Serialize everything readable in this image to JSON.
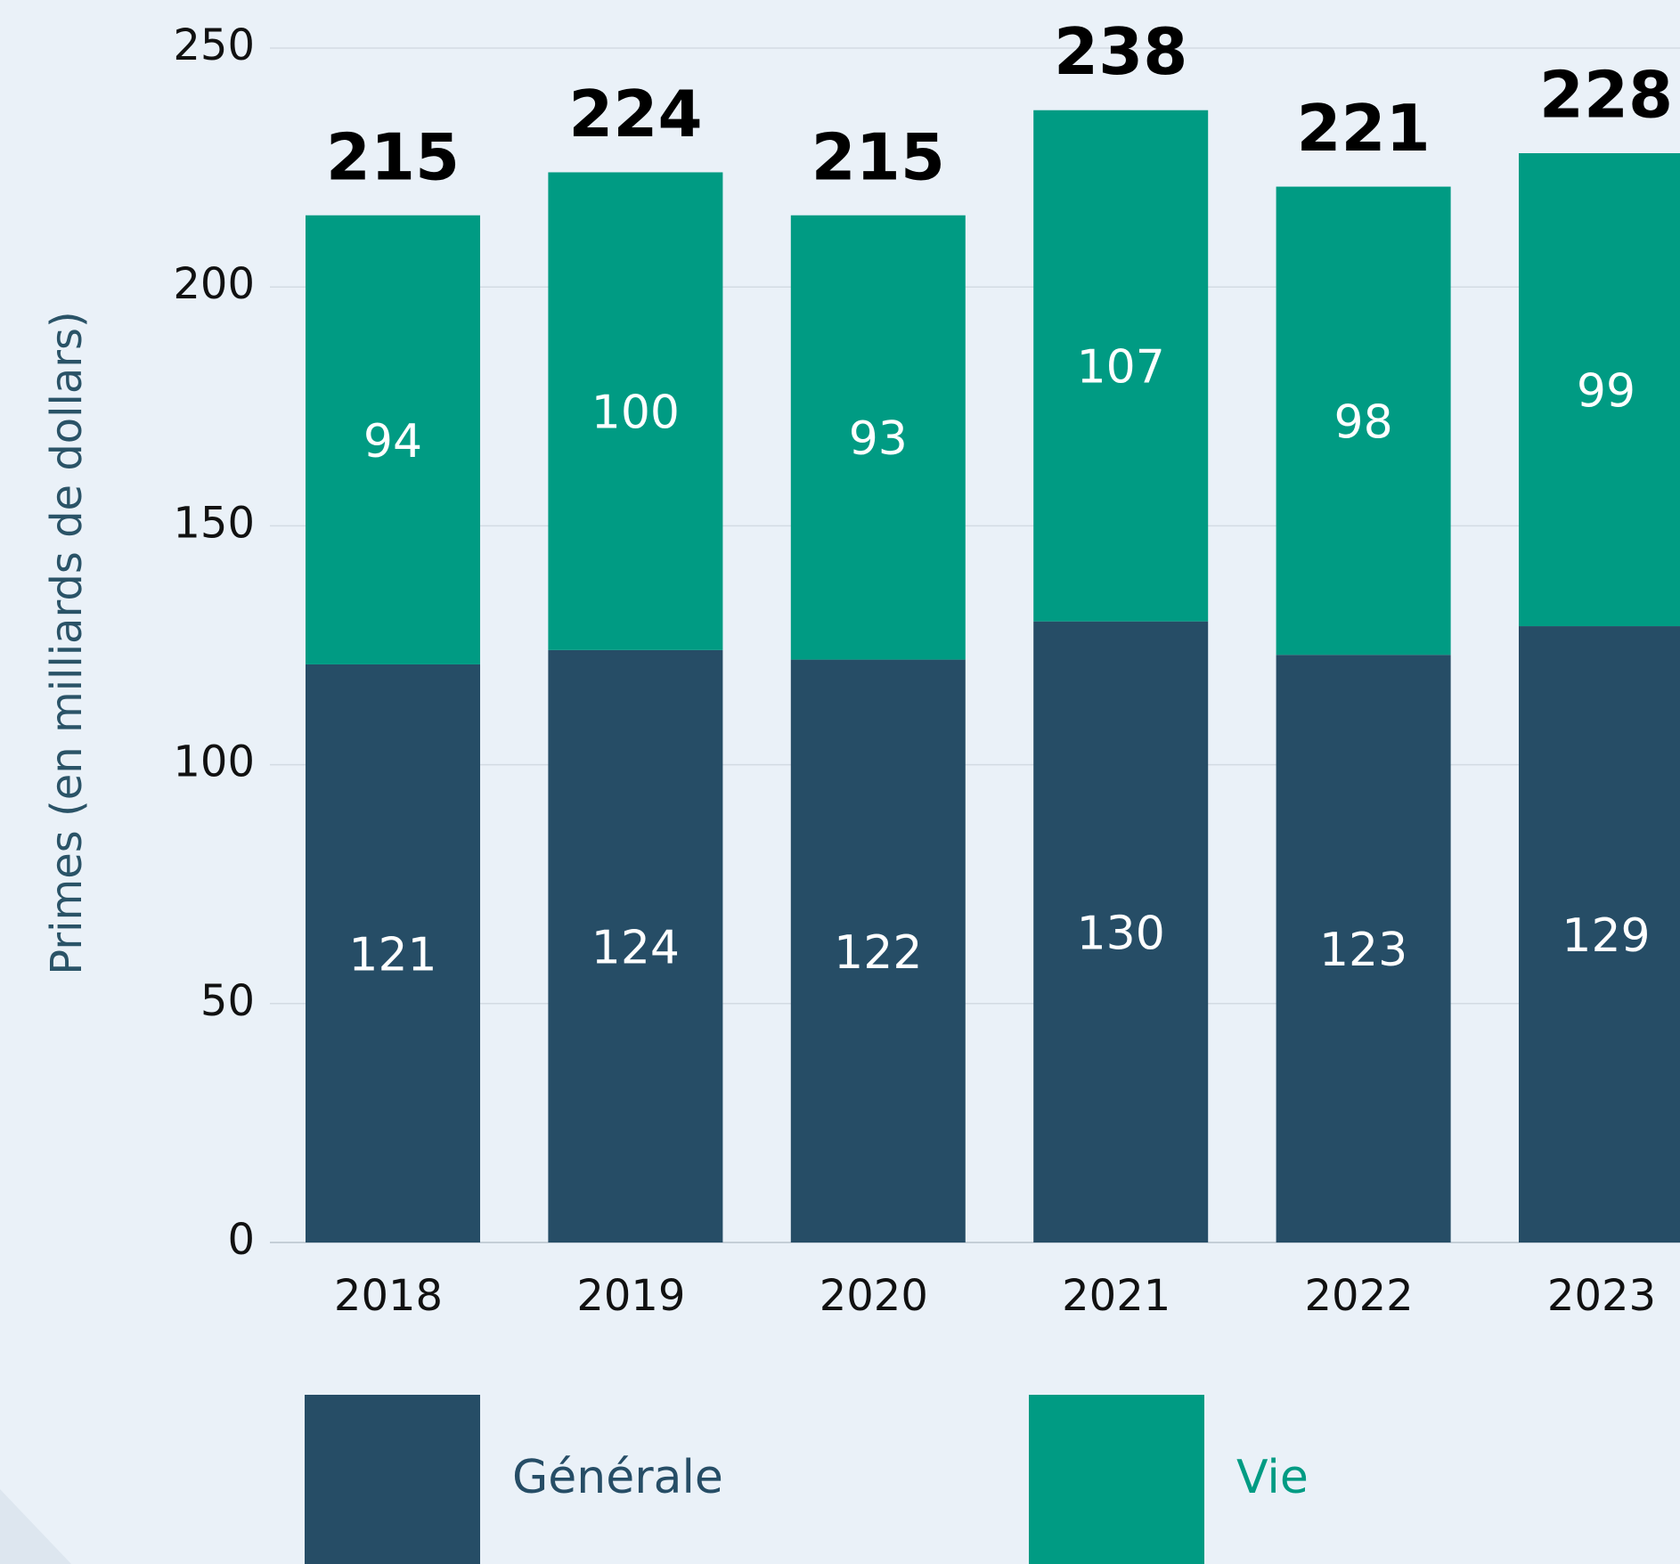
{
  "chart_data": {
    "type": "bar",
    "stacked": true,
    "y_label": "Primes (en milliards de dollars)",
    "categories": [
      "2018",
      "2019",
      "2020",
      "2021",
      "2022",
      "2023"
    ],
    "series": [
      {
        "name": "Générale",
        "color": "#264d66",
        "values": [
          121,
          124,
          122,
          130,
          123,
          129
        ]
      },
      {
        "name": "Vie",
        "color": "#009b83",
        "values": [
          94,
          100,
          93,
          107,
          98,
          99
        ]
      }
    ],
    "totals": [
      215,
      224,
      215,
      238,
      221,
      228
    ],
    "ylim": [
      0,
      250
    ],
    "yticks": [
      0,
      50,
      100,
      150,
      200,
      250
    ],
    "grid": true
  }
}
